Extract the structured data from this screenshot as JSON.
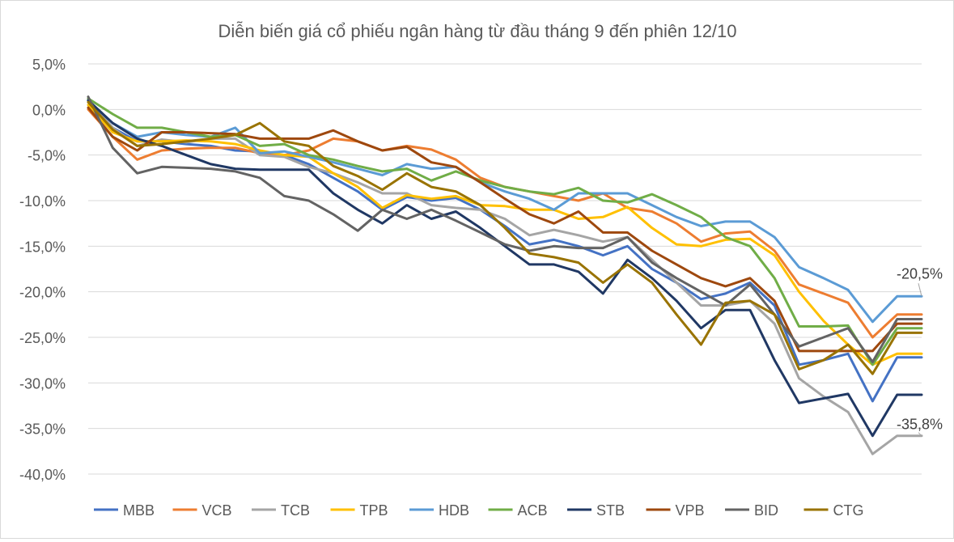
{
  "chart_data": {
    "type": "line",
    "title": "Diễn biến giá cổ phiếu ngân hàng từ đầu tháng 9 đến phiên 12/10",
    "xlabel": "",
    "ylabel": "",
    "ylim": [
      -40,
      5
    ],
    "yticks": [
      "5,0%",
      "0,0%",
      "-5,0%",
      "-10,0%",
      "-15,0%",
      "-20,0%",
      "-25,0%",
      "-30,0%",
      "-35,0%",
      "-40,0%"
    ],
    "ytick_values": [
      5,
      0,
      -5,
      -10,
      -15,
      -20,
      -25,
      -30,
      -35,
      -40
    ],
    "grid": true,
    "legend_position": "bottom",
    "x": [
      0,
      1,
      2,
      3,
      4,
      5,
      6,
      7,
      8,
      9,
      10,
      11,
      12,
      13,
      14,
      15,
      16,
      17,
      18,
      19,
      20,
      21,
      22,
      23,
      24,
      25,
      26,
      27,
      28,
      29,
      30,
      31,
      32,
      33,
      34
    ],
    "series": [
      {
        "name": "MBB",
        "color": "#4472c4",
        "values": [
          1.0,
          -2.0,
          -3.5,
          -3.5,
          -3.8,
          -4.0,
          -4.5,
          -4.6,
          -5.0,
          -6.0,
          -7.5,
          -9.0,
          -11.0,
          -9.6,
          -10.0,
          -9.7,
          -11.0,
          -12.8,
          -14.8,
          -14.3,
          -15.0,
          -16.0,
          -15.0,
          -17.5,
          -19.0,
          -20.8,
          -20.2,
          -19.0,
          -21.5,
          -28.0,
          -27.5,
          -26.8,
          -32.0,
          -27.2,
          -27.2
        ]
      },
      {
        "name": "VCB",
        "color": "#ed7d31",
        "values": [
          0.0,
          -3.0,
          -5.5,
          -4.5,
          -4.3,
          -4.2,
          -4.2,
          -4.8,
          -5.0,
          -4.5,
          -3.2,
          -3.5,
          -4.5,
          -4.0,
          -4.4,
          -5.5,
          -7.5,
          -8.5,
          -9.0,
          -9.5,
          -10.0,
          -9.2,
          -10.8,
          -11.2,
          -12.5,
          -14.5,
          -13.6,
          -13.4,
          -15.5,
          -19.2,
          -20.2,
          -21.2,
          -25.0,
          -22.5,
          -22.5
        ]
      },
      {
        "name": "TCB",
        "color": "#a5a5a5",
        "values": [
          1.0,
          -2.0,
          -4.0,
          -3.3,
          -3.6,
          -3.2,
          -3.2,
          -5.0,
          -5.2,
          -6.3,
          -7.0,
          -8.0,
          -9.2,
          -9.2,
          -10.5,
          -10.8,
          -11.0,
          -12.0,
          -13.8,
          -13.2,
          -13.8,
          -14.5,
          -14.0,
          -16.5,
          -19.0,
          -21.5,
          -21.5,
          -21.0,
          -23.5,
          -29.5,
          -31.5,
          -33.2,
          -37.8,
          -35.8,
          -35.8
        ]
      },
      {
        "name": "TPB",
        "color": "#ffc000",
        "values": [
          0.5,
          -2.5,
          -3.5,
          -3.5,
          -3.4,
          -3.5,
          -3.8,
          -4.5,
          -5.0,
          -5.2,
          -7.0,
          -8.5,
          -10.8,
          -9.4,
          -9.8,
          -9.5,
          -10.5,
          -10.6,
          -11.0,
          -11.0,
          -12.0,
          -11.8,
          -10.7,
          -13.0,
          -14.8,
          -15.0,
          -14.3,
          -14.2,
          -16.0,
          -20.0,
          -23.2,
          -25.8,
          -28.0,
          -26.8,
          -26.8
        ]
      },
      {
        "name": "HDB",
        "color": "#5b9bd5",
        "values": [
          1.0,
          -1.5,
          -3.0,
          -2.5,
          -2.8,
          -3.0,
          -2.0,
          -4.8,
          -4.6,
          -5.2,
          -5.8,
          -6.5,
          -7.2,
          -6.0,
          -6.5,
          -6.3,
          -8.0,
          -9.0,
          -9.8,
          -11.0,
          -9.2,
          -9.2,
          -9.2,
          -10.5,
          -11.8,
          -12.8,
          -12.3,
          -12.3,
          -14.0,
          -17.3,
          -18.5,
          -19.8,
          -23.3,
          -20.5,
          -20.5
        ]
      },
      {
        "name": "ACB",
        "color": "#70ad47",
        "values": [
          1.2,
          -0.5,
          -2.0,
          -2.0,
          -2.5,
          -3.0,
          -2.8,
          -4.0,
          -3.8,
          -5.0,
          -5.5,
          -6.2,
          -6.8,
          -6.5,
          -7.8,
          -6.8,
          -7.8,
          -8.5,
          -9.0,
          -9.3,
          -8.6,
          -10.0,
          -10.2,
          -9.3,
          -10.5,
          -11.8,
          -14.0,
          -15.0,
          -18.5,
          -23.8,
          -23.8,
          -23.7,
          -28.0,
          -24.0,
          -24.0
        ]
      },
      {
        "name": "STB",
        "color": "#203864",
        "values": [
          1.0,
          -1.5,
          -3.2,
          -4.0,
          -5.0,
          -6.0,
          -6.5,
          -6.6,
          -6.6,
          -6.6,
          -9.2,
          -11.0,
          -12.5,
          -10.5,
          -12.0,
          -11.2,
          -13.0,
          -15.0,
          -17.0,
          -17.0,
          -17.8,
          -20.2,
          -16.5,
          -18.5,
          -21.0,
          -24.0,
          -22.0,
          -22.0,
          -27.5,
          -32.2,
          -31.7,
          -31.2,
          -35.8,
          -31.3,
          -31.3
        ]
      },
      {
        "name": "VPB",
        "color": "#9e480e",
        "values": [
          0.2,
          -3.0,
          -4.5,
          -2.5,
          -2.5,
          -2.6,
          -2.7,
          -3.2,
          -3.2,
          -3.2,
          -2.3,
          -3.5,
          -4.5,
          -4.1,
          -5.8,
          -6.3,
          -8.0,
          -9.8,
          -11.5,
          -12.5,
          -11.2,
          -13.5,
          -13.5,
          -15.5,
          -17.0,
          -18.5,
          -19.4,
          -18.5,
          -21.0,
          -26.5,
          -26.5,
          -26.5,
          -26.5,
          -23.5,
          -23.5
        ]
      },
      {
        "name": "BID",
        "color": "#636363",
        "values": [
          1.4,
          -4.2,
          -7.0,
          -6.3,
          -6.4,
          -6.5,
          -6.8,
          -7.5,
          -9.5,
          -10.0,
          -11.5,
          -13.3,
          -11.0,
          -12.0,
          -11.0,
          -12.2,
          -13.5,
          -14.8,
          -15.5,
          -15.0,
          -15.2,
          -15.2,
          -14.0,
          -16.8,
          -18.5,
          -20.0,
          -21.5,
          -19.2,
          -22.5,
          -26.0,
          -25.0,
          -24.0,
          -27.7,
          -23.0,
          -23.0
        ]
      },
      {
        "name": "CTG",
        "color": "#997300",
        "values": [
          0.8,
          -2.2,
          -4.0,
          -3.8,
          -3.5,
          -3.2,
          -2.8,
          -1.5,
          -3.5,
          -4.0,
          -6.2,
          -7.3,
          -8.8,
          -7.0,
          -8.5,
          -9.0,
          -10.5,
          -13.0,
          -15.8,
          -16.2,
          -16.8,
          -19.0,
          -17.0,
          -19.0,
          -22.5,
          -25.8,
          -21.2,
          -21.0,
          -22.5,
          -28.5,
          -27.5,
          -25.8,
          -29.0,
          -24.5,
          -24.5
        ]
      }
    ],
    "annotations": [
      {
        "text": "-20,5%",
        "series": "HDB",
        "x": 34,
        "y": -20.5
      },
      {
        "text": "-35,8%",
        "series": "TCB",
        "x": 34,
        "y": -35.8
      }
    ]
  }
}
